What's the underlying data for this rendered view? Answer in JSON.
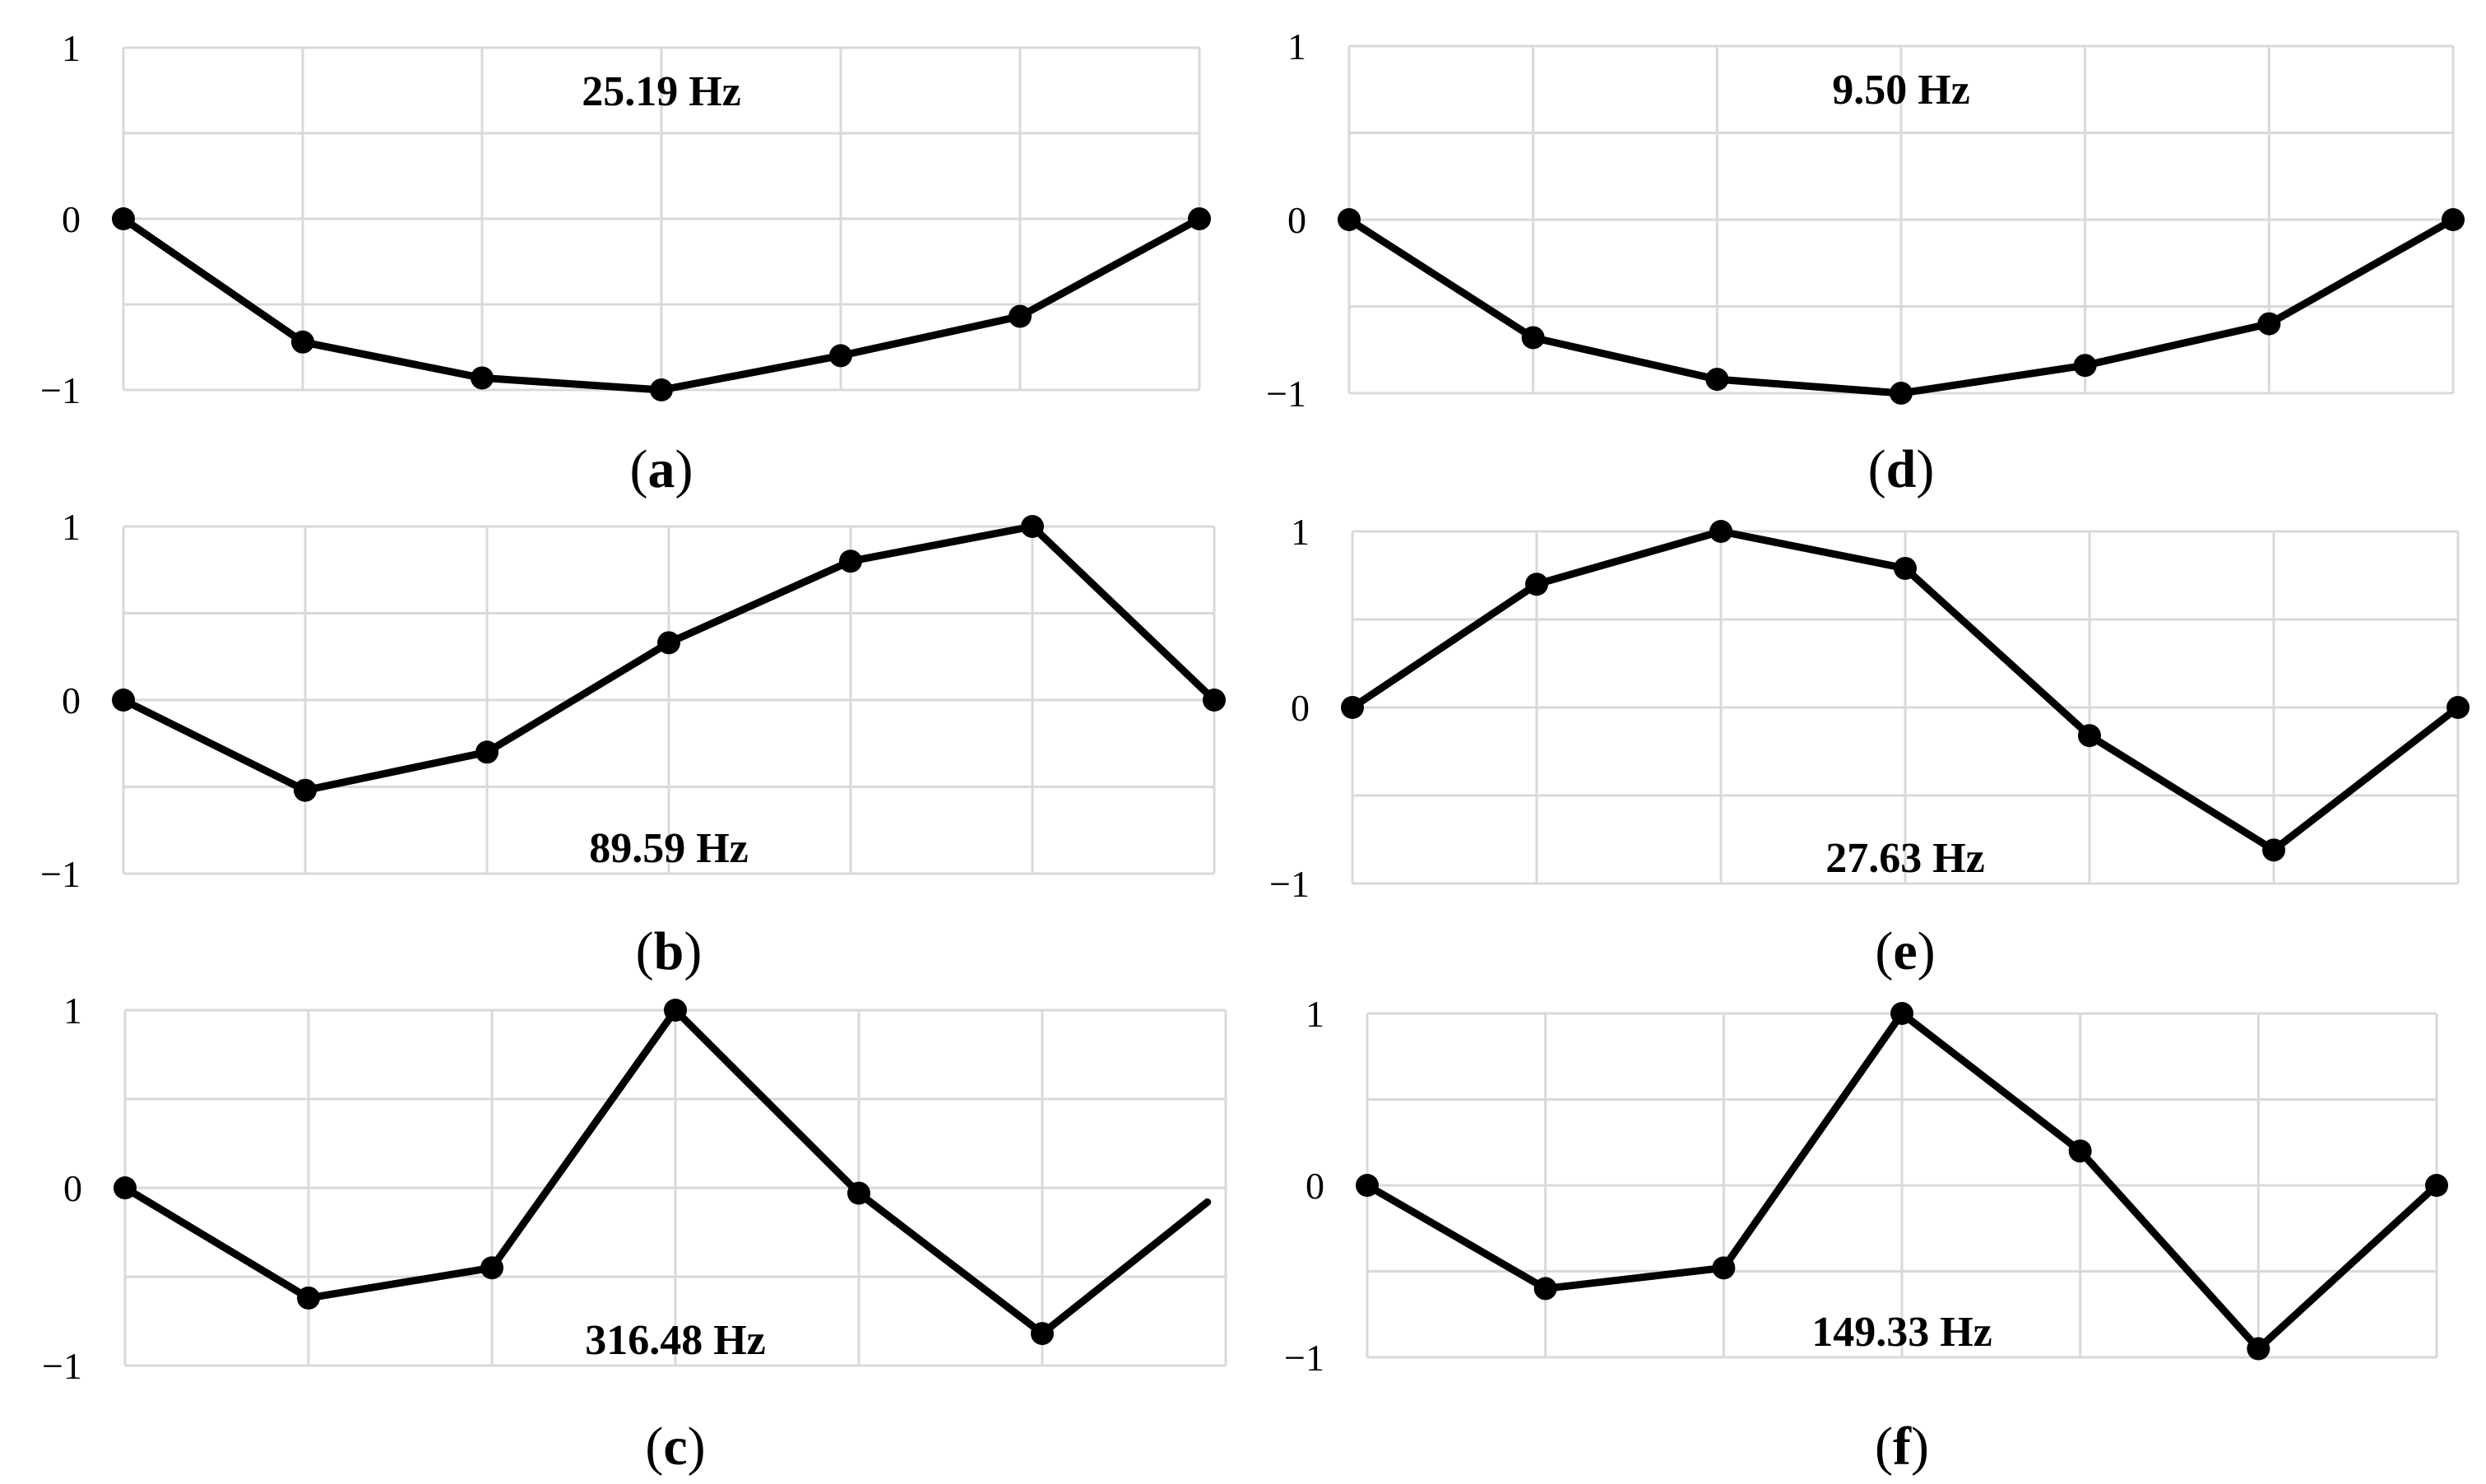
{
  "chart_data": [
    {
      "panel": "a",
      "type": "line",
      "annotation": "25.19 Hz",
      "x": [
        0,
        1,
        2,
        3,
        4,
        5,
        6
      ],
      "y": [
        0,
        -0.72,
        -0.93,
        -1.0,
        -0.8,
        -0.57,
        0
      ],
      "ylim": [
        -1,
        1
      ],
      "yticks": [
        "1",
        "0",
        "−1"
      ],
      "grid": true,
      "annotation_position": "top",
      "caption_open": "(",
      "caption_letter": "a",
      "caption_close": ")"
    },
    {
      "panel": "b",
      "type": "line",
      "annotation": "89.59 Hz",
      "x": [
        0,
        1,
        2,
        3,
        4,
        5,
        6
      ],
      "y": [
        0,
        -0.52,
        -0.3,
        0.33,
        0.8,
        1.0,
        0
      ],
      "ylim": [
        -1,
        1
      ],
      "yticks": [
        "1",
        "0",
        "−1"
      ],
      "grid": true,
      "annotation_position": "bottom",
      "caption_open": "(",
      "caption_letter": "b",
      "caption_close": ")"
    },
    {
      "panel": "c",
      "type": "line",
      "annotation": "316.48 Hz",
      "x": [
        0,
        1,
        2,
        3,
        4,
        5,
        5.9
      ],
      "y": [
        0,
        -0.62,
        -0.45,
        1.0,
        -0.03,
        -0.82,
        -0.08
      ],
      "ylim": [
        -1,
        1
      ],
      "yticks": [
        "1",
        "0",
        "−1"
      ],
      "grid": true,
      "annotation_position": "bottom",
      "caption_open": "(",
      "caption_letter": "c",
      "caption_close": ")"
    },
    {
      "panel": "d",
      "type": "line",
      "annotation": "9.50 Hz",
      "x": [
        0,
        1,
        2,
        3,
        4,
        5,
        6
      ],
      "y": [
        0,
        -0.68,
        -0.92,
        -1.0,
        -0.84,
        -0.6,
        0
      ],
      "ylim": [
        -1,
        1
      ],
      "yticks": [
        "1",
        "0",
        "−1"
      ],
      "grid": true,
      "annotation_position": "top",
      "caption_open": "(",
      "caption_letter": "d",
      "caption_close": ")"
    },
    {
      "panel": "e",
      "type": "line",
      "annotation": "27.63 Hz",
      "x": [
        0,
        1,
        2,
        3,
        4,
        5,
        6
      ],
      "y": [
        0,
        0.7,
        1.0,
        0.79,
        -0.16,
        -0.81,
        0
      ],
      "ylim": [
        -1,
        1
      ],
      "yticks": [
        "1",
        "0",
        "−1"
      ],
      "grid": true,
      "annotation_position": "bottom",
      "caption_open": "(",
      "caption_letter": "e",
      "caption_close": ")"
    },
    {
      "panel": "f",
      "type": "line",
      "annotation": "149.33 Hz",
      "x": [
        0,
        1,
        2,
        3,
        4,
        5,
        6
      ],
      "y": [
        0,
        -0.6,
        -0.48,
        1.0,
        0.2,
        -0.95,
        0
      ],
      "ylim": [
        -1,
        1
      ],
      "yticks": [
        "1",
        "0",
        "−1"
      ],
      "grid": true,
      "annotation_position": "bottom",
      "caption_open": "(",
      "caption_letter": "f",
      "caption_close": ")"
    }
  ]
}
